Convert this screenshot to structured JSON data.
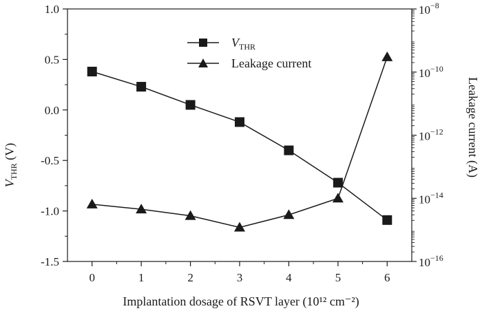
{
  "chart_data": {
    "type": "line",
    "x": [
      0,
      1,
      2,
      3,
      4,
      5,
      6
    ],
    "xlabel": "Implantation dosage of RSVT layer (10¹² cm⁻²)",
    "xlim": [
      -0.5,
      6.5
    ],
    "xticks": [
      "0",
      "1",
      "2",
      "3",
      "4",
      "5",
      "6"
    ],
    "left_axis": {
      "label": "V_THR (V)",
      "label_main": "V",
      "label_sub": "THR",
      "label_tail": " (V)",
      "ylim": [
        -1.5,
        1.0
      ],
      "ticks": [
        "1.0",
        "0.5",
        "0.0",
        "-0.5",
        "-1.0",
        "-1.5"
      ]
    },
    "right_axis": {
      "label": "Leakage current (A)",
      "scale": "log",
      "ylim": [
        1e-16,
        1e-08
      ],
      "ticks": [
        {
          "base": "10",
          "exp": "−8"
        },
        {
          "base": "10",
          "exp": "−10"
        },
        {
          "base": "10",
          "exp": "−12"
        },
        {
          "base": "10",
          "exp": "−14"
        },
        {
          "base": "10",
          "exp": "−16"
        }
      ]
    },
    "series": [
      {
        "name": "V_THR",
        "name_main": "V",
        "name_sub": "THR",
        "axis": "left",
        "marker": "square",
        "values": [
          0.38,
          0.23,
          0.05,
          -0.12,
          -0.4,
          -0.72,
          -1.09
        ]
      },
      {
        "name": "Leakage current",
        "axis": "right",
        "marker": "triangle",
        "values": [
          6.5e-15,
          4.5e-15,
          2.8e-15,
          1.2e-15,
          3e-15,
          1e-14,
          3e-10
        ]
      }
    ],
    "legend": "top-center",
    "grid": false
  }
}
